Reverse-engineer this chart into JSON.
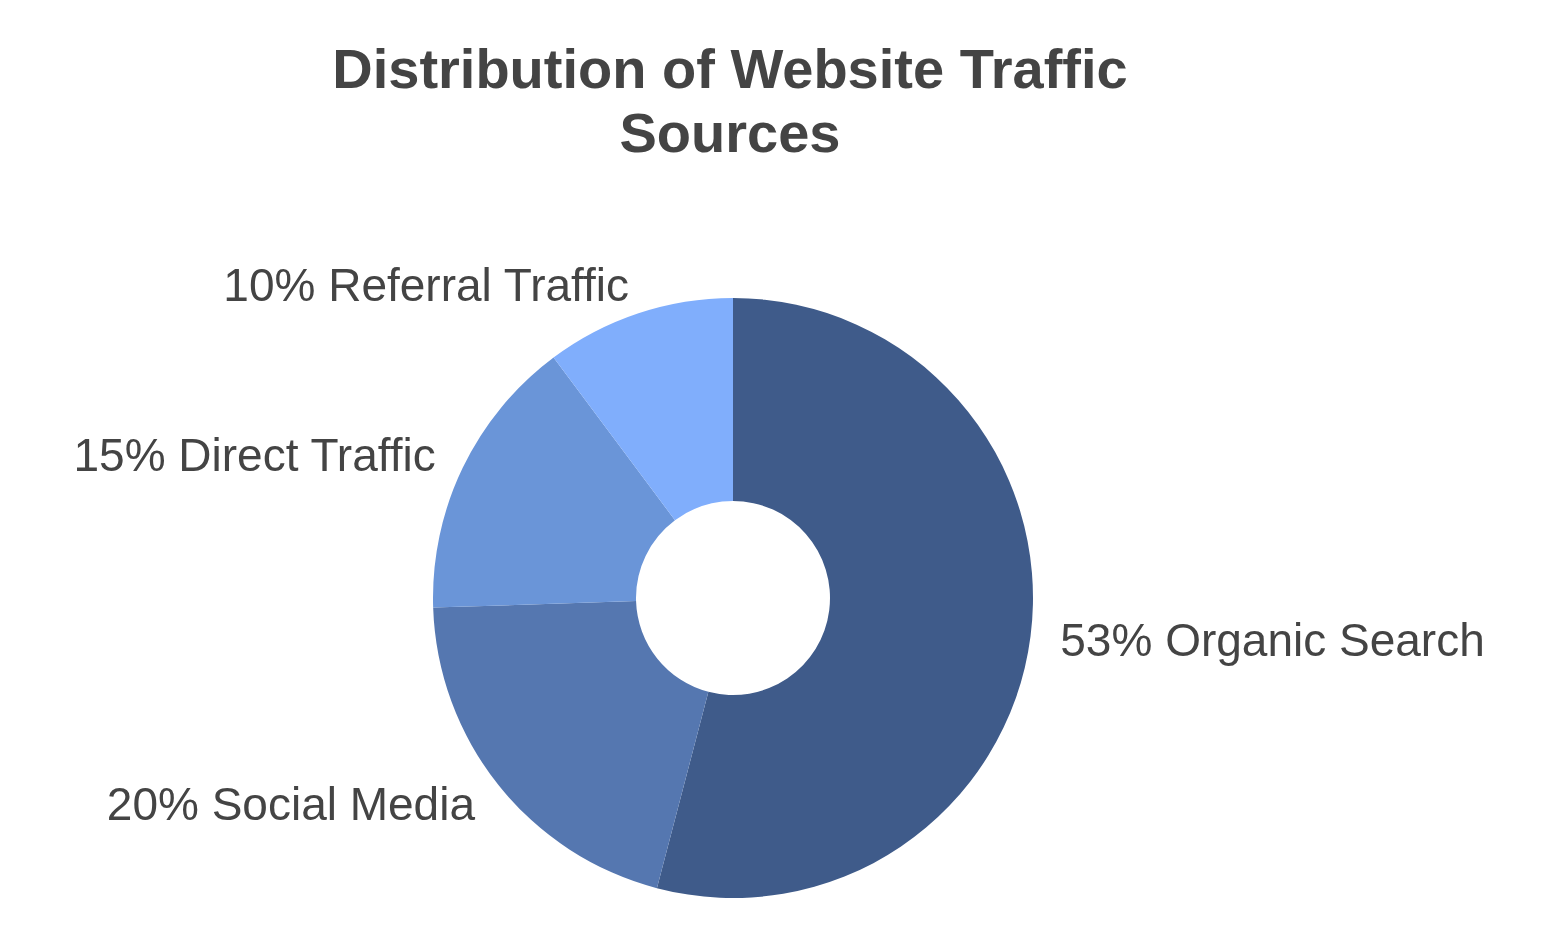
{
  "chart_data": {
    "type": "donut",
    "title": "Distribution of Website Traffic Sources",
    "categories": [
      "Organic Search",
      "Social Media",
      "Direct Traffic",
      "Referral Traffic"
    ],
    "values": [
      53,
      20,
      15,
      10
    ],
    "value_labels": [
      "53%",
      "20%",
      "15%",
      "10%"
    ],
    "colors": [
      "#3f5b8a",
      "#5577b0",
      "#6a95d8",
      "#80aefc"
    ]
  }
}
